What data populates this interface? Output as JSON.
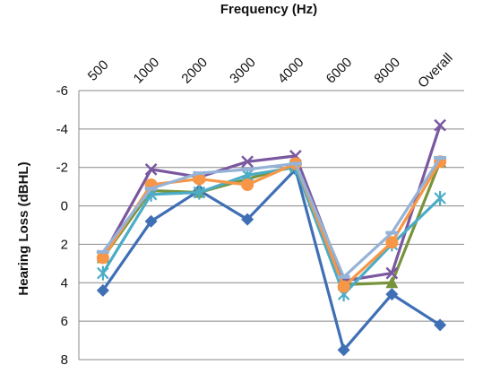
{
  "chart_data": {
    "type": "line",
    "title": "Frequency (Hz)",
    "xlabel": "Frequency (Hz)",
    "ylabel": "Hearing Loss (dBHL)",
    "categories": [
      "500",
      "1000",
      "2000",
      "3000",
      "4000",
      "6000",
      "8000",
      "Overall"
    ],
    "ylim": [
      -6,
      8
    ],
    "y_inverted": true,
    "yticks": [
      "-6",
      "-4",
      "-2",
      "0",
      "2",
      "4",
      "6",
      "8"
    ],
    "grid": true,
    "series": [
      {
        "color": "#3f6fb5",
        "marker": "diamond",
        "values": [
          4.4,
          0.8,
          -0.8,
          0.7,
          -1.9,
          7.5,
          4.6,
          6.2
        ]
      },
      {
        "color": "#77933c",
        "marker": "triangle",
        "values": [
          2.7,
          -0.8,
          -0.7,
          -1.4,
          -2.1,
          4.1,
          4.0,
          -2.3
        ]
      },
      {
        "color": "#7a58a0",
        "marker": "x",
        "values": [
          2.6,
          -1.9,
          -1.5,
          -2.3,
          -2.6,
          3.9,
          3.5,
          -4.2
        ]
      },
      {
        "color": "#4bacc6",
        "marker": "star",
        "values": [
          3.5,
          -0.6,
          -0.7,
          -1.6,
          -2.0,
          4.6,
          2.0,
          -0.4
        ]
      },
      {
        "color": "#f79646",
        "marker": "circle",
        "values": [
          2.7,
          -1.1,
          -1.4,
          -1.1,
          -2.2,
          4.2,
          1.9,
          -2.3
        ]
      },
      {
        "color": "#95b3d7",
        "marker": "dash",
        "values": [
          2.4,
          -0.9,
          -1.7,
          -1.9,
          -2.2,
          3.7,
          1.4,
          -2.5
        ]
      }
    ]
  }
}
